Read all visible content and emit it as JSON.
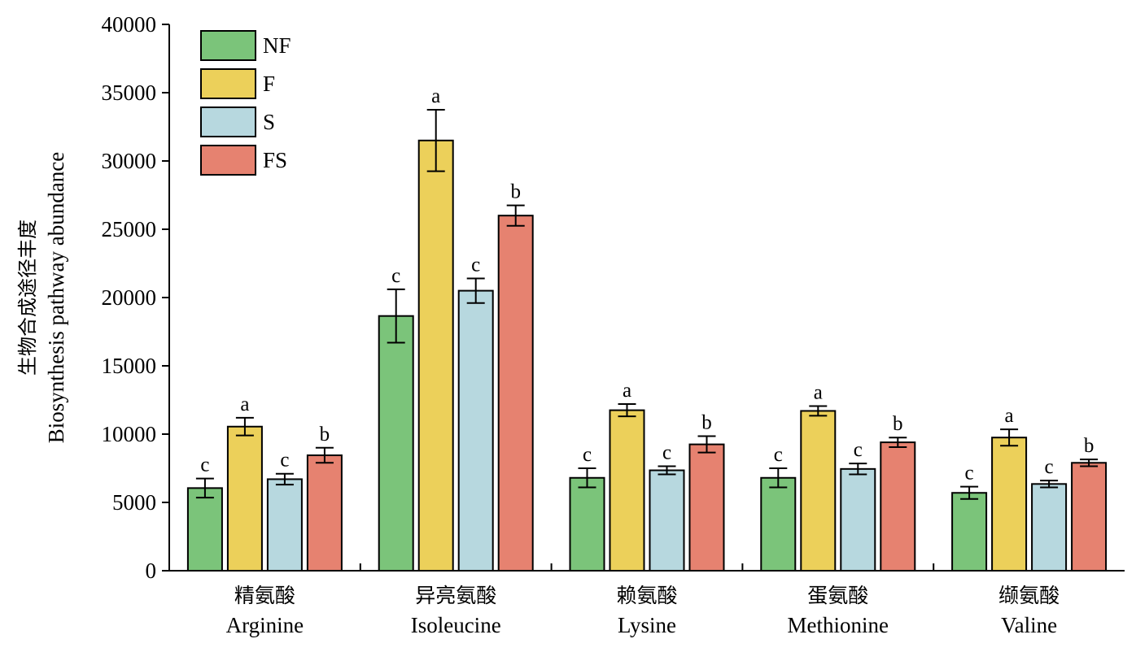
{
  "chart_data": {
    "type": "bar",
    "title": "",
    "ylabel_cn": "生物合成途径丰度",
    "ylabel_en": "Biosynthesis pathway abundance",
    "ylim": [
      0,
      40000
    ],
    "yticks": [
      "0",
      "5000",
      "10000",
      "15000",
      "20000",
      "25000",
      "30000",
      "35000",
      "40000"
    ],
    "ytick_values": [
      0,
      5000,
      10000,
      15000,
      20000,
      25000,
      30000,
      35000,
      40000
    ],
    "categories": [
      {
        "cn": "精氨酸",
        "en": "Arginine"
      },
      {
        "cn": "异亮氨酸",
        "en": "Isoleucine"
      },
      {
        "cn": "赖氨酸",
        "en": "Lysine"
      },
      {
        "cn": "蛋氨酸",
        "en": "Methionine"
      },
      {
        "cn": "缬氨酸",
        "en": "Valine"
      }
    ],
    "series": [
      {
        "name": "NF",
        "color": "#7bc47a",
        "values": [
          6050,
          18650,
          6800,
          6800,
          5700
        ],
        "errors": [
          700,
          1950,
          700,
          700,
          450
        ],
        "letters": [
          "c",
          "c",
          "c",
          "c",
          "c"
        ]
      },
      {
        "name": "F",
        "color": "#ecd05a",
        "values": [
          10550,
          31500,
          11750,
          11700,
          9750
        ],
        "errors": [
          650,
          2250,
          450,
          350,
          600
        ],
        "letters": [
          "a",
          "a",
          "a",
          "a",
          "a"
        ]
      },
      {
        "name": "S",
        "color": "#b7d8df",
        "values": [
          6700,
          20500,
          7350,
          7450,
          6350
        ],
        "errors": [
          400,
          900,
          300,
          400,
          250
        ],
        "letters": [
          "c",
          "c",
          "c",
          "c",
          "c"
        ]
      },
      {
        "name": "FS",
        "color": "#e68270",
        "values": [
          8450,
          26000,
          9250,
          9400,
          7900
        ],
        "errors": [
          550,
          750,
          600,
          350,
          250
        ],
        "letters": [
          "b",
          "b",
          "b",
          "b",
          "b"
        ]
      }
    ],
    "legend": "top-left",
    "grid": false
  }
}
